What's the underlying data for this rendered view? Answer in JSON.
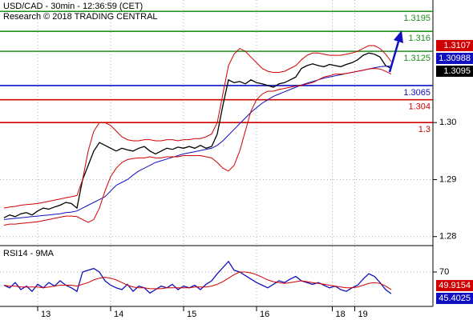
{
  "chart_data": [
    {
      "type": "line",
      "title": "USD/CAD - 30min - 12:36:59 (CET)",
      "subtitle": "Research © 2018 TRADING CENTRAL",
      "ylim": [
        1.2787,
        1.3215
      ],
      "yticks": [
        1.28,
        1.29,
        {
          "value": 1.3,
          "label": "1.30"
        }
      ],
      "xticks": [
        {
          "value": 6,
          "label": "13"
        },
        {
          "value": 19,
          "label": "14"
        },
        {
          "value": 32,
          "label": "15"
        },
        {
          "value": 45,
          "label": "16"
        },
        {
          "value": 58.5,
          "label": "18"
        },
        {
          "value": 62.5,
          "label": "19"
        }
      ],
      "grid": true,
      "levels": [
        {
          "value": 1.3195,
          "color": "#1f8f1f"
        },
        {
          "value": 1.316,
          "color": "#1f8f1f"
        },
        {
          "value": 1.3125,
          "color": "#1f8f1f"
        },
        {
          "value": 1.3065,
          "color": "#1010c0"
        },
        {
          "value": 1.304,
          "color": "#d00000"
        },
        {
          "value": 1.3,
          "color": "#d00000"
        }
      ],
      "series": [
        {
          "color": "#000000",
          "values": [
            1.2833,
            1.2838,
            1.2835,
            1.284,
            1.2842,
            1.2838,
            1.2845,
            1.285,
            1.2848,
            1.2852,
            1.2855,
            1.286,
            1.2858,
            1.285,
            1.29,
            1.2925,
            1.295,
            1.2965,
            1.296,
            1.2955,
            1.295,
            1.2955,
            1.2952,
            1.295,
            1.2955,
            1.2958,
            1.295,
            1.2945,
            1.295,
            1.2955,
            1.2953,
            1.2957,
            1.2955,
            1.2958,
            1.2955,
            1.296,
            1.2955,
            1.2958,
            1.298,
            1.303,
            1.3075,
            1.307,
            1.3072,
            1.3068,
            1.3075,
            1.307,
            1.3068,
            1.3065,
            1.3062,
            1.3068,
            1.307,
            1.3075,
            1.308,
            1.3095,
            1.31,
            1.3103,
            1.31,
            1.3098,
            1.3102,
            1.31,
            1.3098,
            1.3102,
            1.3105,
            1.311,
            1.3118,
            1.3122,
            1.312,
            1.3115,
            1.31,
            1.3095
          ]
        },
        {
          "color": "#1010c0",
          "values": [
            1.283,
            1.2831,
            1.2832,
            1.2833,
            1.2834,
            1.2835,
            1.2836,
            1.2837,
            1.2838,
            1.2839,
            1.284,
            1.2842,
            1.2843,
            1.2845,
            1.285,
            1.2855,
            1.286,
            1.2865,
            1.287,
            1.288,
            1.289,
            1.2895,
            1.29,
            1.2908,
            1.2915,
            1.292,
            1.2925,
            1.293,
            1.2933,
            1.2936,
            1.2939,
            1.2942,
            1.2945,
            1.2947,
            1.2949,
            1.2951,
            1.2953,
            1.2955,
            1.296,
            1.2968,
            1.2978,
            1.2988,
            1.2998,
            1.3008,
            1.3018,
            1.3026,
            1.3034,
            1.304,
            1.3046,
            1.305,
            1.3054,
            1.3058,
            1.3062,
            1.3066,
            1.3069,
            1.3072,
            1.3075,
            1.3078,
            1.308,
            1.3082,
            1.3084,
            1.3086,
            1.3088,
            1.309,
            1.3092,
            1.3094,
            1.3096,
            1.3098,
            1.3099,
            1.30988
          ]
        },
        {
          "color": "#d00000",
          "values": [
            1.285,
            1.2852,
            1.2853,
            1.2855,
            1.2856,
            1.2857,
            1.2858,
            1.286,
            1.2862,
            1.2864,
            1.2866,
            1.2868,
            1.287,
            1.2872,
            1.29,
            1.295,
            1.2985,
            1.3,
            1.3,
            1.2995,
            1.2985,
            1.2975,
            1.297,
            1.2968,
            1.2968,
            1.297,
            1.297,
            1.2968,
            1.2968,
            1.297,
            1.297,
            1.2968,
            1.297,
            1.297,
            1.2972,
            1.2972,
            1.2975,
            1.298,
            1.3,
            1.305,
            1.31,
            1.312,
            1.313,
            1.3125,
            1.3115,
            1.3105,
            1.3095,
            1.309,
            1.3088,
            1.3088,
            1.309,
            1.3095,
            1.31,
            1.311,
            1.3118,
            1.3122,
            1.3122,
            1.312,
            1.3118,
            1.3118,
            1.3118,
            1.312,
            1.3122,
            1.3125,
            1.313,
            1.3135,
            1.3135,
            1.313,
            1.312,
            1.3107
          ]
        },
        {
          "color": "#d00000",
          "values": [
            1.282,
            1.2822,
            1.2822,
            1.2823,
            1.2824,
            1.2825,
            1.2826,
            1.2828,
            1.283,
            1.2832,
            1.2834,
            1.2836,
            1.2836,
            1.2835,
            1.283,
            1.2825,
            1.283,
            1.285,
            1.288,
            1.2905,
            1.292,
            1.293,
            1.2935,
            1.2937,
            1.2938,
            1.2938,
            1.294,
            1.2938,
            1.2938,
            1.294,
            1.294,
            1.294,
            1.2942,
            1.2942,
            1.2942,
            1.2942,
            1.294,
            1.2938,
            1.293,
            1.292,
            1.2915,
            1.2925,
            1.295,
            1.2985,
            1.302,
            1.304,
            1.305,
            1.3055,
            1.3055,
            1.3058,
            1.306,
            1.3062,
            1.3064,
            1.3065,
            1.3068,
            1.307,
            1.3075,
            1.308,
            1.3082,
            1.3085,
            1.3085,
            1.3086,
            1.3088,
            1.309,
            1.3092,
            1.3094,
            1.3095,
            1.3094,
            1.309,
            1.3085
          ]
        }
      ],
      "tags": [
        {
          "series": 2,
          "color": "#d00000"
        },
        {
          "series": 1,
          "color": "#1010c0"
        },
        {
          "series": 0,
          "color": "#000000"
        }
      ]
    },
    {
      "type": "line",
      "title": "RSI14 - 9MA",
      "ylim": [
        30.9,
        97.3
      ],
      "yticks": [
        70
      ],
      "series": [
        {
          "color": "#1010c0",
          "values": [
            55,
            52,
            58,
            50,
            54,
            48,
            56,
            52,
            58,
            54,
            60,
            55,
            52,
            48,
            70,
            72,
            74,
            70,
            60,
            55,
            52,
            50,
            56,
            48,
            54,
            52,
            46,
            50,
            54,
            52,
            56,
            50,
            54,
            52,
            55,
            50,
            56,
            60,
            68,
            75,
            82,
            72,
            70,
            66,
            62,
            58,
            55,
            52,
            56,
            60,
            58,
            62,
            65,
            60,
            58,
            56,
            58,
            55,
            52,
            54,
            50,
            48,
            52,
            55,
            62,
            68,
            65,
            58,
            50,
            45.4025
          ]
        },
        {
          "color": "#d00000",
          "values": [
            55,
            54,
            54,
            53,
            53,
            53,
            53,
            52,
            53,
            54,
            55,
            55,
            55,
            54,
            56,
            58,
            61,
            63,
            64,
            63,
            61,
            58,
            55,
            53,
            52,
            52,
            51,
            51,
            51,
            52,
            52,
            52,
            52,
            52,
            53,
            53,
            53,
            54,
            56,
            59,
            63,
            67,
            70,
            70,
            69,
            67,
            64,
            61,
            59,
            58,
            57,
            58,
            59,
            60,
            59,
            58,
            57,
            56,
            55,
            54,
            53,
            52,
            52,
            53,
            55,
            57,
            58,
            57,
            54,
            49.9154
          ]
        }
      ],
      "tags": [
        {
          "series": 1,
          "color": "#d00000"
        },
        {
          "series": 0,
          "color": "#1010c0"
        }
      ]
    }
  ]
}
